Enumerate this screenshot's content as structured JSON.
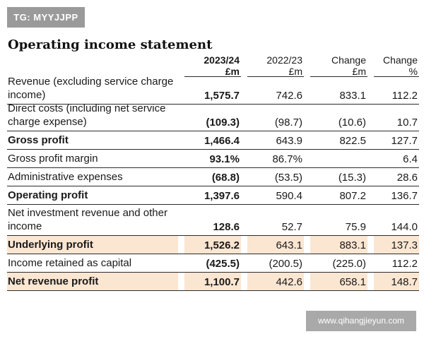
{
  "badge": "TG: MYYJJPP",
  "title": "Operating income statement",
  "columns": [
    {
      "line1": "2023/24",
      "line2": "£m"
    },
    {
      "line1": "2022/23",
      "line2": "£m"
    },
    {
      "line1": "Change",
      "line2": "£m"
    },
    {
      "line1": "Change",
      "line2": "%"
    }
  ],
  "rows": [
    {
      "label": "Revenue (excluding service charge income)",
      "values": [
        "1,575.7",
        "742.6",
        "833.1",
        "112.2"
      ],
      "bold": false,
      "highlight": false
    },
    {
      "label": "Direct costs (including net service charge expense)",
      "values": [
        "(109.3)",
        "(98.7)",
        "(10.6)",
        "10.7"
      ],
      "bold": false,
      "highlight": false
    },
    {
      "label": "Gross profit",
      "values": [
        "1,466.4",
        "643.9",
        "822.5",
        "127.7"
      ],
      "bold": true,
      "highlight": false
    },
    {
      "label": "Gross profit margin",
      "values": [
        "93.1%",
        "86.7%",
        "",
        "6.4"
      ],
      "bold": false,
      "highlight": false
    },
    {
      "label": "Administrative expenses",
      "values": [
        "(68.8)",
        "(53.5)",
        "(15.3)",
        "28.6"
      ],
      "bold": false,
      "highlight": false
    },
    {
      "label": "Operating profit",
      "values": [
        "1,397.6",
        "590.4",
        "807.2",
        "136.7"
      ],
      "bold": true,
      "highlight": false
    },
    {
      "label": "Net investment revenue and other income",
      "values": [
        "128.6",
        "52.7",
        "75.9",
        "144.0"
      ],
      "bold": false,
      "highlight": false
    },
    {
      "label": "Underlying profit",
      "values": [
        "1,526.2",
        "643.1",
        "883.1",
        "137.3"
      ],
      "bold": true,
      "highlight": true
    },
    {
      "label": "Income retained as capital",
      "values": [
        "(425.5)",
        "(200.5)",
        "(225.0)",
        "112.2"
      ],
      "bold": false,
      "highlight": false
    },
    {
      "label": "Net revenue profit",
      "values": [
        "1,100.7",
        "442.6",
        "658.1",
        "148.7"
      ],
      "bold": true,
      "highlight": true
    }
  ],
  "watermark": "www.qihangjieyun.com",
  "colors": {
    "highlight": "#fbe6d2",
    "badge_bg": "#9a9a9a",
    "watermark_bg": "#a9a9a9"
  }
}
